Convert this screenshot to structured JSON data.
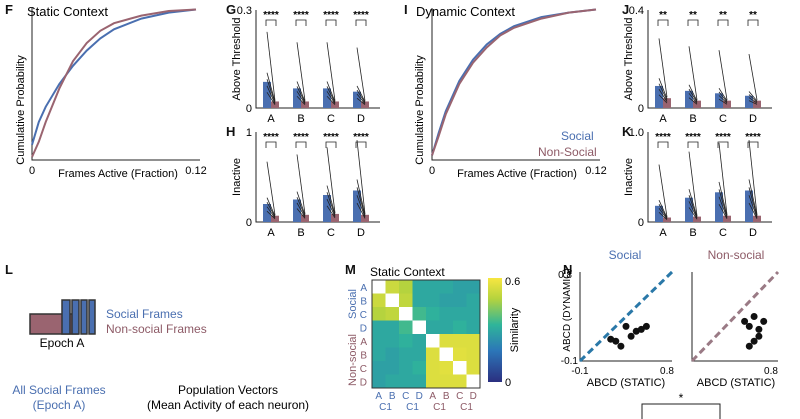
{
  "panels": {
    "F": {
      "letter": "F",
      "title": "Static Context",
      "ylabel": "Cumulative Probability",
      "xlabel": "Frames Active (Fraction)",
      "x0": "0",
      "x1": "0.12"
    },
    "I": {
      "letter": "I",
      "title": "Dynamic Context",
      "ylabel": "Cumulative Probability",
      "xlabel": "Frames Active (Fraction)",
      "x0": "0",
      "x1": "0.12"
    },
    "G": {
      "letter": "G",
      "ylabel": "Above Threshold",
      "ymax": "0.3",
      "ymin": "0",
      "sig": "****"
    },
    "H": {
      "letter": "H",
      "ylabel": "Inactive",
      "ymax": "1",
      "ymin": "0",
      "sig": "****"
    },
    "J": {
      "letter": "J",
      "ylabel": "Above Threshold",
      "ymax": "0.4",
      "ymin": "0",
      "sig": "**"
    },
    "K": {
      "letter": "K",
      "ylabel": "Inactive",
      "ymax": "1.0",
      "ymin": "0",
      "sig": "****"
    },
    "L": {
      "letter": "L",
      "social": "Social Frames",
      "nonsocial": "Non-social Frames",
      "epoch": "Epoch A",
      "all_social_line1": "All Social Frames",
      "all_social_line2": "(Epoch A)",
      "popvec_line1": "Population Vectors",
      "popvec_line2": "(Mean Activity of each neuron)"
    },
    "M": {
      "letter": "M",
      "title": "Static Context",
      "cbar_label": "Similarity",
      "cbar_max": "0.6",
      "cbar_min": "0",
      "group_social": "Social",
      "group_nonsocial": "Non-social",
      "row_labels": [
        "A",
        "B",
        "C",
        "D",
        "A",
        "B",
        "C",
        "D"
      ],
      "col_labels": [
        "A",
        "B",
        "C",
        "D",
        "A",
        "B",
        "C",
        "D"
      ],
      "col_sub": "C1"
    },
    "N": {
      "letter": "N",
      "left_title": "Social",
      "right_title": "Non-social",
      "ylabel": "ABCD (DYNAMIC)",
      "xlabel": "ABCD (STATIC)",
      "ymax": "0.8",
      "ymin": "-0.1",
      "xmin": "-0.1",
      "xmax": "0.8",
      "sig": "*"
    }
  },
  "legend": {
    "social": "Social",
    "nonsocial": "Non-Social"
  },
  "categories": [
    "A",
    "B",
    "C",
    "D"
  ],
  "colors": {
    "social": "#4a6fb0",
    "nonsocial": "#9a6470",
    "social_text": "#4a6fb0",
    "nonsocial_text": "#8d5a66",
    "dashed_social": "#2a78a8",
    "dashed_nonsocial": "#9a7a85"
  },
  "chart_data": [
    {
      "type": "line",
      "panel": "F",
      "series": [
        {
          "x": [
            0,
            0.005,
            0.01,
            0.02,
            0.03,
            0.04,
            0.05,
            0.06,
            0.08,
            0.1,
            0.12
          ],
          "y": [
            0.1,
            0.25,
            0.35,
            0.5,
            0.62,
            0.72,
            0.8,
            0.86,
            0.93,
            0.97,
            0.99
          ]
        },
        {
          "x": [
            0,
            0.005,
            0.01,
            0.02,
            0.03,
            0.04,
            0.05,
            0.06,
            0.08,
            0.1,
            0.12
          ],
          "y": [
            0.02,
            0.12,
            0.25,
            0.47,
            0.65,
            0.77,
            0.85,
            0.9,
            0.95,
            0.98,
            0.99
          ]
        }
      ],
      "xlim": [
        0,
        0.12
      ],
      "ylim": [
        0,
        1
      ]
    },
    {
      "type": "line",
      "panel": "I",
      "series": [
        {
          "x": [
            0,
            0.005,
            0.01,
            0.02,
            0.03,
            0.04,
            0.05,
            0.06,
            0.08,
            0.1,
            0.12
          ],
          "y": [
            0.03,
            0.18,
            0.32,
            0.52,
            0.66,
            0.76,
            0.83,
            0.88,
            0.94,
            0.97,
            0.99
          ]
        },
        {
          "x": [
            0,
            0.005,
            0.01,
            0.02,
            0.03,
            0.04,
            0.05,
            0.06,
            0.08,
            0.1,
            0.12
          ],
          "y": [
            0.03,
            0.16,
            0.3,
            0.5,
            0.64,
            0.74,
            0.82,
            0.87,
            0.93,
            0.97,
            0.99
          ]
        }
      ],
      "xlim": [
        0,
        0.12
      ],
      "ylim": [
        0,
        1
      ]
    },
    {
      "type": "bar",
      "panel": "G",
      "categories": [
        "A",
        "B",
        "C",
        "D"
      ],
      "series": [
        {
          "values": [
            0.08,
            0.06,
            0.06,
            0.05
          ]
        },
        {
          "values": [
            0.02,
            0.02,
            0.02,
            0.02
          ]
        }
      ],
      "ylim": [
        0,
        0.3
      ]
    },
    {
      "type": "bar",
      "panel": "H",
      "categories": [
        "A",
        "B",
        "C",
        "D"
      ],
      "series": [
        {
          "values": [
            0.2,
            0.25,
            0.3,
            0.35
          ]
        },
        {
          "values": [
            0.07,
            0.08,
            0.09,
            0.08
          ]
        }
      ],
      "ylim": [
        0,
        1
      ]
    },
    {
      "type": "bar",
      "panel": "J",
      "categories": [
        "A",
        "B",
        "C",
        "D"
      ],
      "series": [
        {
          "values": [
            0.09,
            0.07,
            0.06,
            0.05
          ]
        },
        {
          "values": [
            0.04,
            0.03,
            0.03,
            0.03
          ]
        }
      ],
      "ylim": [
        0,
        0.4
      ]
    },
    {
      "type": "bar",
      "panel": "K",
      "categories": [
        "A",
        "B",
        "C",
        "D"
      ],
      "series": [
        {
          "values": [
            0.18,
            0.27,
            0.33,
            0.35
          ]
        },
        {
          "values": [
            0.05,
            0.06,
            0.07,
            0.07
          ]
        }
      ],
      "ylim": [
        0,
        1
      ]
    },
    {
      "type": "heatmap",
      "panel": "M",
      "matrix": [
        [
          1,
          0.52,
          0.48,
          0.3,
          0.3,
          0.3,
          0.28,
          0.28
        ],
        [
          0.52,
          1,
          0.5,
          0.3,
          0.3,
          0.28,
          0.28,
          0.3
        ],
        [
          0.48,
          0.5,
          1,
          0.35,
          0.32,
          0.3,
          0.3,
          0.3
        ],
        [
          0.3,
          0.3,
          0.35,
          1,
          0.3,
          0.3,
          0.32,
          0.3
        ],
        [
          0.3,
          0.3,
          0.32,
          0.3,
          1,
          0.55,
          0.55,
          0.55
        ],
        [
          0.3,
          0.28,
          0.3,
          0.3,
          0.55,
          1,
          0.56,
          0.55
        ],
        [
          0.28,
          0.28,
          0.3,
          0.32,
          0.55,
          0.56,
          1,
          0.55
        ],
        [
          0.28,
          0.3,
          0.3,
          0.3,
          0.55,
          0.55,
          0.55,
          1
        ]
      ],
      "zlim": [
        0,
        0.6
      ]
    },
    {
      "type": "scatter",
      "panel": "N-left",
      "x": [
        0.25,
        0.35,
        0.45,
        0.55,
        0.3,
        0.4,
        0.2,
        0.5
      ],
      "y": [
        0.1,
        0.25,
        0.2,
        0.25,
        0.05,
        0.15,
        0.12,
        0.22
      ],
      "xlim": [
        -0.1,
        0.8
      ],
      "ylim": [
        -0.1,
        0.8
      ]
    },
    {
      "type": "scatter",
      "panel": "N-right",
      "x": [
        0.5,
        0.55,
        0.6,
        0.45,
        0.65,
        0.55,
        0.5,
        0.6
      ],
      "y": [
        0.25,
        0.35,
        0.15,
        0.3,
        0.3,
        0.1,
        0.05,
        0.22
      ],
      "xlim": [
        -0.1,
        0.8
      ],
      "ylim": [
        -0.1,
        0.8
      ]
    }
  ]
}
